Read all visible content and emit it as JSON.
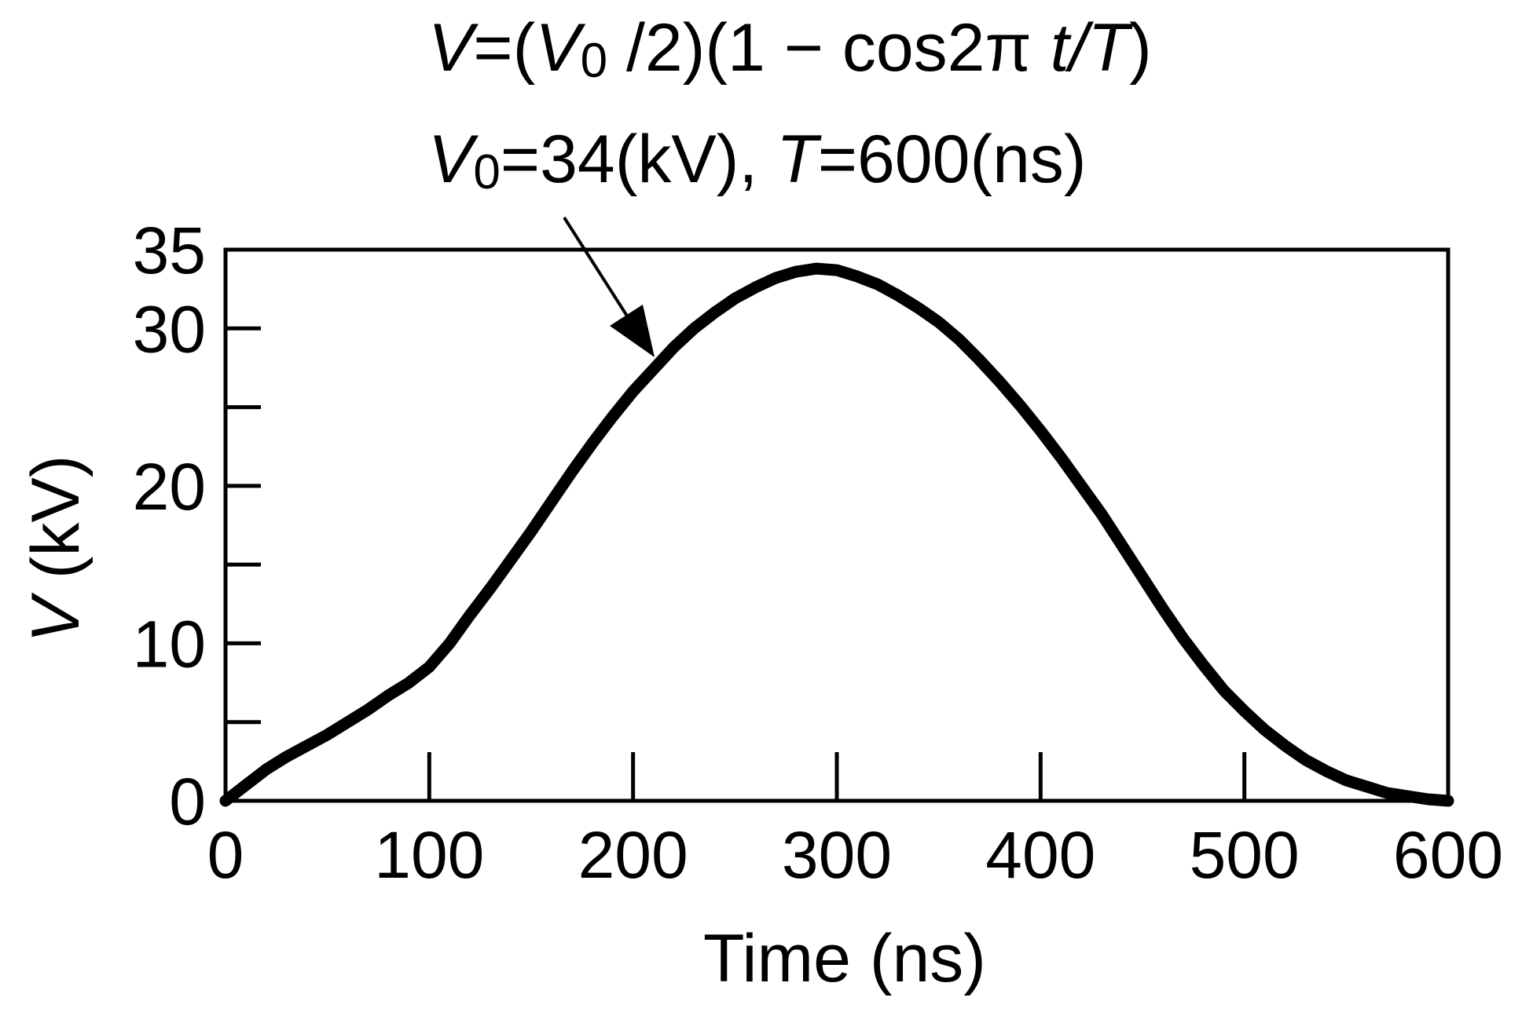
{
  "chart_data": {
    "type": "line",
    "title": "",
    "xlabel": "Time (ns)",
    "ylabel_var": "V",
    "ylabel_unit": "(kV)",
    "xlim": [
      0,
      600
    ],
    "ylim": [
      0,
      35
    ],
    "x_ticks": [
      0,
      100,
      200,
      300,
      400,
      500,
      600
    ],
    "y_ticks": [
      0,
      10,
      20,
      30,
      35
    ],
    "y_minor_ticks": [
      5,
      15,
      25
    ],
    "x_tick_labels": [
      "0",
      "100",
      "200",
      "300",
      "400",
      "500",
      "600"
    ],
    "y_tick_labels": [
      "0",
      "10",
      "20",
      "30",
      "35"
    ],
    "grid": false,
    "series": [
      {
        "name": "V=(V0/2)(1-cos2πt/T)",
        "color": "#000000",
        "x": [
          0,
          10,
          20,
          30,
          40,
          50,
          60,
          70,
          80,
          90,
          100,
          110,
          120,
          130,
          140,
          150,
          160,
          170,
          180,
          190,
          200,
          210,
          220,
          230,
          240,
          250,
          260,
          270,
          280,
          290,
          300,
          310,
          320,
          330,
          340,
          350,
          360,
          370,
          380,
          390,
          400,
          410,
          420,
          430,
          440,
          450,
          460,
          470,
          480,
          490,
          500,
          510,
          520,
          530,
          540,
          550,
          560,
          570,
          580,
          590,
          600
        ],
        "y": [
          0.0,
          1.0,
          2.0,
          2.8,
          3.5,
          4.2,
          5.0,
          5.8,
          6.7,
          7.5,
          8.5,
          10.0,
          11.8,
          13.5,
          15.3,
          17.1,
          19.0,
          20.9,
          22.7,
          24.4,
          26.0,
          27.4,
          28.8,
          30.0,
          31.0,
          31.9,
          32.6,
          33.2,
          33.6,
          33.8,
          33.7,
          33.3,
          32.8,
          32.1,
          31.3,
          30.4,
          29.3,
          28.0,
          26.6,
          25.1,
          23.5,
          21.8,
          20.0,
          18.2,
          16.2,
          14.2,
          12.2,
          10.3,
          8.6,
          7.0,
          5.7,
          4.5,
          3.5,
          2.6,
          1.9,
          1.3,
          0.9,
          0.5,
          0.3,
          0.1,
          0.0
        ]
      }
    ],
    "annotations": {
      "formula": {
        "v": "V",
        "eq": "=(",
        "v0": "V",
        "sub0": "0",
        "mid": " /2)(1 − cos2π ",
        "t": "t",
        "slash": "/",
        "T": "T",
        "close": ")"
      },
      "params": {
        "v0": "V",
        "sub0": "0",
        "val": "=34(kV), ",
        "T": "T",
        "tval": "=600(ns)"
      }
    }
  }
}
